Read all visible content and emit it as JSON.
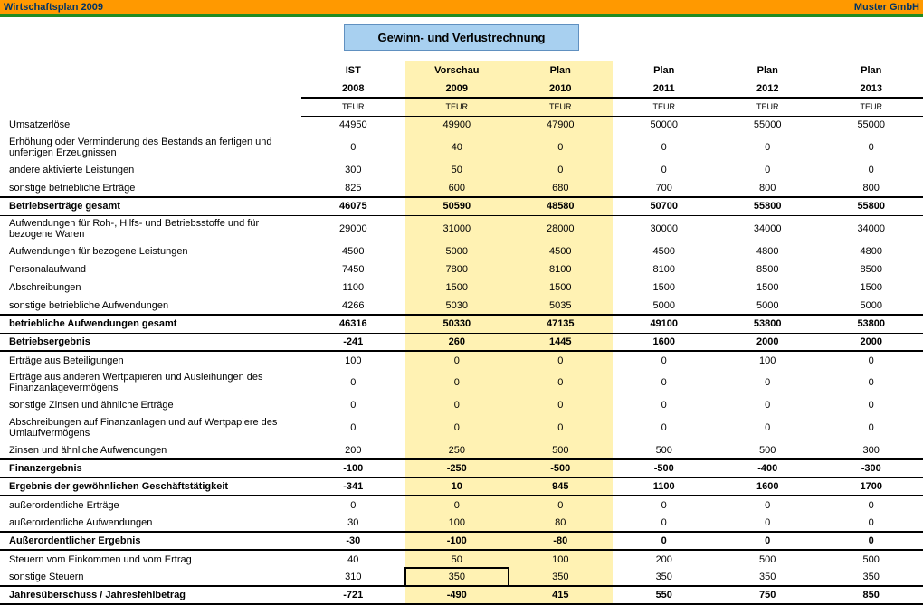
{
  "topbar": {
    "left": "Wirtschaftsplan 2009",
    "right": "Muster GmbH"
  },
  "banner": "Gewinn- und Verlustrechnung",
  "colors": {
    "topbar_bg": "#ff9900",
    "topbar_text": "#003366",
    "border_green": "#228b22",
    "banner_bg": "#a8d0f0",
    "highlight_bg": "#fff2b3",
    "bg": "#ffffff"
  },
  "columns": [
    {
      "label1": "IST",
      "label2": "2008",
      "unit": "TEUR",
      "highlight": false
    },
    {
      "label1": "Vorschau",
      "label2": "2009",
      "unit": "TEUR",
      "highlight": true
    },
    {
      "label1": "Plan",
      "label2": "2010",
      "unit": "TEUR",
      "highlight": true
    },
    {
      "label1": "Plan",
      "label2": "2011",
      "unit": "TEUR",
      "highlight": false
    },
    {
      "label1": "Plan",
      "label2": "2012",
      "unit": "TEUR",
      "highlight": false
    },
    {
      "label1": "Plan",
      "label2": "2013",
      "unit": "TEUR",
      "highlight": false
    }
  ],
  "rows": [
    {
      "label": "Umsatzerlöse",
      "v": [
        "44950",
        "49900",
        "47900",
        "50000",
        "55000",
        "55000"
      ]
    },
    {
      "label": "Erhöhung oder Verminderung des Bestands an fertigen und unfertigen Erzeugnissen",
      "tall": true,
      "v": [
        "0",
        "40",
        "0",
        "0",
        "0",
        "0"
      ]
    },
    {
      "label": "andere aktivierte Leistungen",
      "v": [
        "300",
        "50",
        "0",
        "0",
        "0",
        "0"
      ]
    },
    {
      "label": "sonstige betriebliche Erträge",
      "v": [
        "825",
        "600",
        "680",
        "700",
        "800",
        "800"
      ]
    },
    {
      "label": "Betriebserträge gesamt",
      "bold": true,
      "bt2": true,
      "bb1": true,
      "v": [
        "46075",
        "50590",
        "48580",
        "50700",
        "55800",
        "55800"
      ]
    },
    {
      "label": "Aufwendungen für Roh-, Hilfs- und Betriebsstoffe und für bezogene Waren",
      "tall": true,
      "v": [
        "29000",
        "31000",
        "28000",
        "30000",
        "34000",
        "34000"
      ]
    },
    {
      "label": "Aufwendungen für bezogene Leistungen",
      "v": [
        "4500",
        "5000",
        "4500",
        "4500",
        "4800",
        "4800"
      ]
    },
    {
      "label": "Personalaufwand",
      "v": [
        "7450",
        "7800",
        "8100",
        "8100",
        "8500",
        "8500"
      ]
    },
    {
      "label": "Abschreibungen",
      "v": [
        "1100",
        "1500",
        "1500",
        "1500",
        "1500",
        "1500"
      ]
    },
    {
      "label": "sonstige betriebliche Aufwendungen",
      "v": [
        "4266",
        "5030",
        "5035",
        "5000",
        "5000",
        "5000"
      ]
    },
    {
      "label": "betriebliche Aufwendungen gesamt",
      "bold": true,
      "bt2": true,
      "bb1": true,
      "v": [
        "46316",
        "50330",
        "47135",
        "49100",
        "53800",
        "53800"
      ]
    },
    {
      "label": "Betriebsergebnis",
      "bold": true,
      "bb2": true,
      "v": [
        "-241",
        "260",
        "1445",
        "1600",
        "2000",
        "2000"
      ]
    },
    {
      "label": "Erträge aus Beteiligungen",
      "v": [
        "100",
        "0",
        "0",
        "0",
        "100",
        "0"
      ]
    },
    {
      "label": "Erträge aus anderen Wertpapieren und Ausleihungen des Finanzanlagevermögens",
      "tall": true,
      "v": [
        "0",
        "0",
        "0",
        "0",
        "0",
        "0"
      ]
    },
    {
      "label": "sonstige Zinsen und ähnliche Erträge",
      "v": [
        "0",
        "0",
        "0",
        "0",
        "0",
        "0"
      ]
    },
    {
      "label": "Abschreibungen auf Finanzanlagen und auf Wertpapiere des Umlaufvermögens",
      "tall": true,
      "v": [
        "0",
        "0",
        "0",
        "0",
        "0",
        "0"
      ]
    },
    {
      "label": "Zinsen und ähnliche Aufwendungen",
      "v": [
        "200",
        "250",
        "500",
        "500",
        "500",
        "300"
      ]
    },
    {
      "label": "Finanzergebnis",
      "bold": true,
      "bt2": true,
      "bb1": true,
      "v": [
        "-100",
        "-250",
        "-500",
        "-500",
        "-400",
        "-300"
      ]
    },
    {
      "label": "Ergebnis der gewöhnlichen Geschäftstätigkeit",
      "bold": true,
      "bb2": true,
      "v": [
        "-341",
        "10",
        "945",
        "1100",
        "1600",
        "1700"
      ]
    },
    {
      "label": "außerordentliche Erträge",
      "v": [
        "0",
        "0",
        "0",
        "0",
        "0",
        "0"
      ]
    },
    {
      "label": "außerordentliche Aufwendungen",
      "v": [
        "30",
        "100",
        "80",
        "0",
        "0",
        "0"
      ]
    },
    {
      "label": "Außerordentlicher Ergebnis",
      "bold": true,
      "bt2": true,
      "bb2": true,
      "v": [
        "-30",
        "-100",
        "-80",
        "0",
        "0",
        "0"
      ]
    },
    {
      "label": "Steuern vom Einkommen und vom Ertrag",
      "v": [
        "40",
        "50",
        "100",
        "200",
        "500",
        "500"
      ]
    },
    {
      "label": "sonstige Steuern",
      "v": [
        "310",
        "350",
        "350",
        "350",
        "350",
        "350"
      ],
      "selected_col": 1
    },
    {
      "label": "Jahresüberschuss / Jahresfehlbetrag",
      "bold": true,
      "bt2": true,
      "bb2": true,
      "v": [
        "-721",
        "-490",
        "415",
        "550",
        "750",
        "850"
      ]
    }
  ]
}
